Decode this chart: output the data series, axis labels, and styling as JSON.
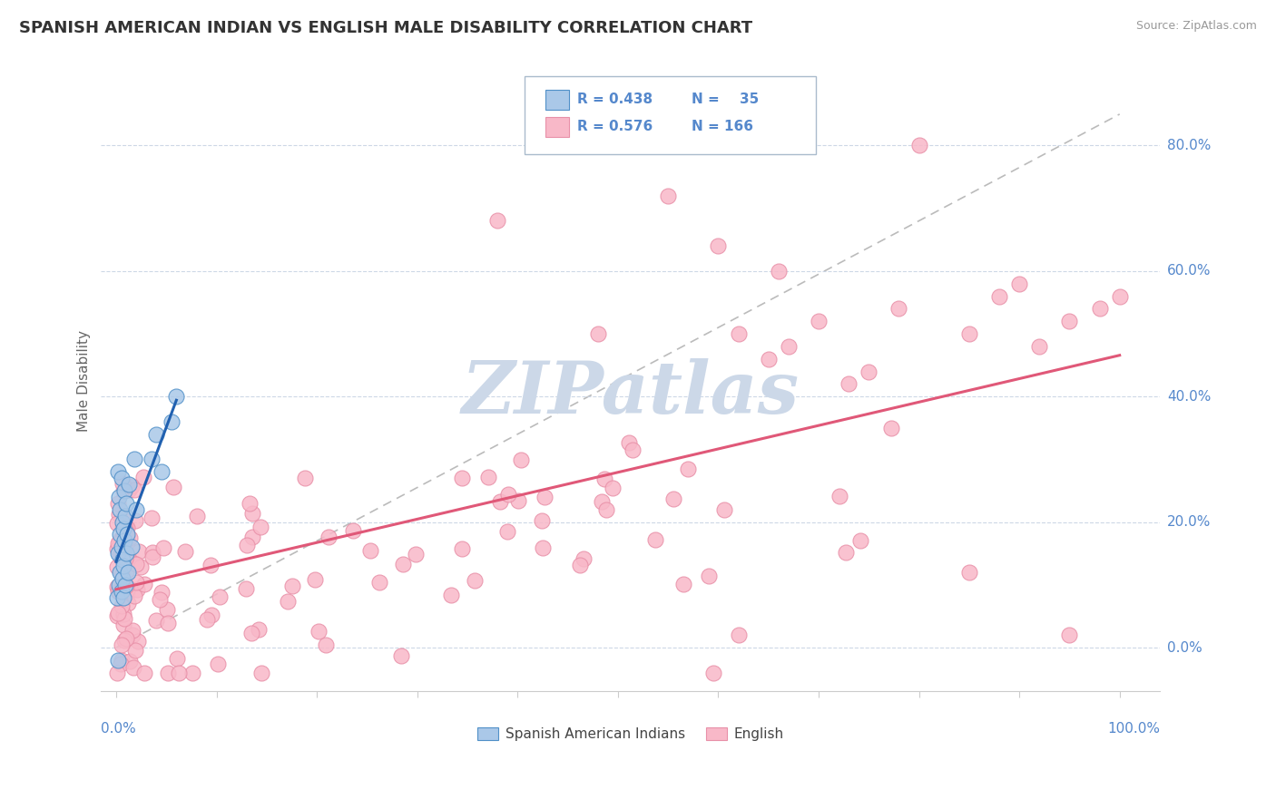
{
  "title": "SPANISH AMERICAN INDIAN VS ENGLISH MALE DISABILITY CORRELATION CHART",
  "source": "Source: ZipAtlas.com",
  "ylabel": "Male Disability",
  "legend_entries": [
    {
      "label": "Spanish American Indians",
      "R": 0.438,
      "N": 35,
      "color": "#aac8e8",
      "line_color": "#2060b0",
      "marker_edge": "#5090c8"
    },
    {
      "label": "English",
      "R": 0.576,
      "N": 166,
      "color": "#f8b8c8",
      "line_color": "#e05878",
      "marker_edge": "#e890a8"
    }
  ],
  "background_color": "#ffffff",
  "watermark_color": "#ccd8e8",
  "tick_color": "#5588cc",
  "grid_color": "#c8d4e4",
  "title_color": "#333333"
}
